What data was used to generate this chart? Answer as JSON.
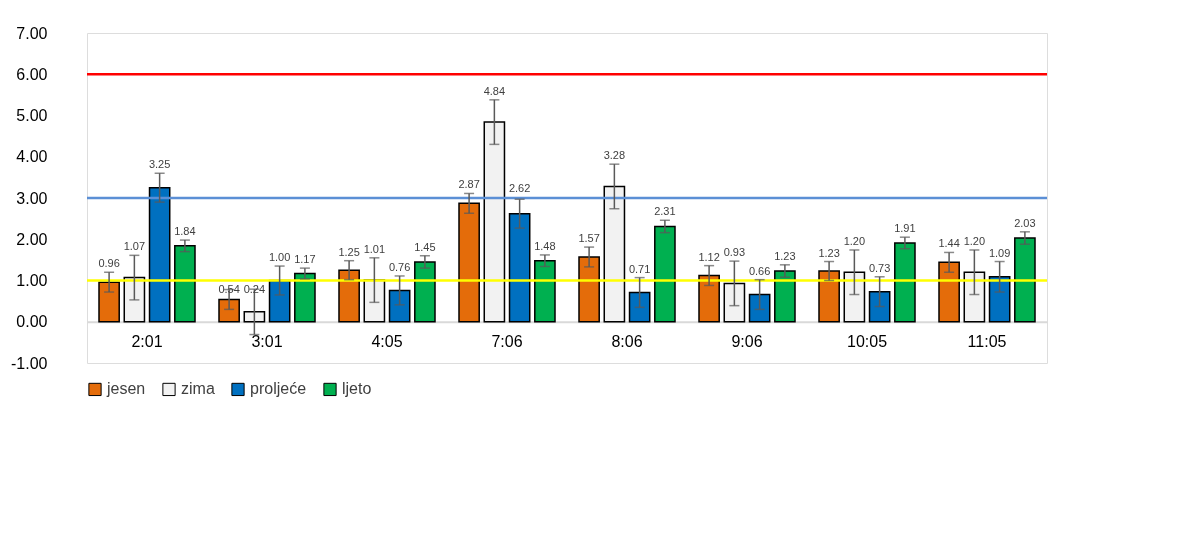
{
  "chart_data": {
    "type": "bar",
    "categories": [
      "2:01",
      "3:01",
      "4:05",
      "7:06",
      "8:06",
      "9:06",
      "10:05",
      "11:05"
    ],
    "series": [
      {
        "name": "jesen",
        "color": "#e46c0a",
        "values": [
          0.96,
          0.54,
          1.25,
          2.87,
          1.57,
          1.12,
          1.23,
          1.44
        ],
        "errors": [
          0.24,
          0.24,
          0.23,
          0.24,
          0.24,
          0.24,
          0.23,
          0.24
        ],
        "value_labels": [
          "0.96",
          "0.54",
          "1.25",
          "2.87",
          "1.57",
          "1.12",
          "1.23",
          "1.44"
        ]
      },
      {
        "name": "zima",
        "color": "#f2f2f2",
        "values": [
          1.07,
          0.24,
          1.01,
          4.84,
          3.28,
          0.93,
          1.2,
          1.2
        ],
        "errors": [
          0.54,
          0.55,
          0.54,
          0.54,
          0.54,
          0.54,
          0.54,
          0.54
        ],
        "value_labels": [
          "1.07",
          "0.24",
          "1.01",
          "4.84",
          "3.28",
          "0.93",
          "1.20",
          "1.20"
        ]
      },
      {
        "name": "proljeće",
        "color": "#0070c0",
        "values": [
          3.25,
          1.0,
          0.76,
          2.62,
          0.71,
          0.66,
          0.73,
          1.09
        ],
        "errors": [
          0.35,
          0.35,
          0.35,
          0.35,
          0.36,
          0.36,
          0.36,
          0.37
        ],
        "value_labels": [
          "3.25",
          "1.00",
          "0.76",
          "2.62",
          "0.71",
          "0.66",
          "0.73",
          "1.09"
        ]
      },
      {
        "name": "ljeto",
        "color": "#00b050",
        "values": [
          1.84,
          1.17,
          1.45,
          1.48,
          2.31,
          1.23,
          1.91,
          2.03
        ],
        "errors": [
          0.14,
          0.13,
          0.15,
          0.14,
          0.15,
          0.15,
          0.14,
          0.15
        ],
        "value_labels": [
          "1.84",
          "1.17",
          "1.45",
          "1.48",
          "2.31",
          "1.23",
          "1.91",
          "2.03"
        ]
      }
    ],
    "ylim": [
      -1,
      7
    ],
    "yticks": [
      {
        "value": -1,
        "label": "-1.00"
      },
      {
        "value": 0,
        "label": "0.00"
      },
      {
        "value": 1,
        "label": "1.00"
      },
      {
        "value": 2,
        "label": "2.00"
      },
      {
        "value": 3,
        "label": "3.00"
      },
      {
        "value": 4,
        "label": "4.00"
      },
      {
        "value": 5,
        "label": "5.00"
      },
      {
        "value": 6,
        "label": "6.00"
      },
      {
        "value": 7,
        "label": "7.00"
      }
    ],
    "ref_lines": [
      {
        "axis": "y",
        "value": 6,
        "color": "#ff0000"
      },
      {
        "axis": "y",
        "value": 3,
        "color": "#5b8fd5"
      },
      {
        "axis": "y",
        "value": 1,
        "color": "#ffff00"
      }
    ],
    "grid": false,
    "legend": "bottom"
  }
}
